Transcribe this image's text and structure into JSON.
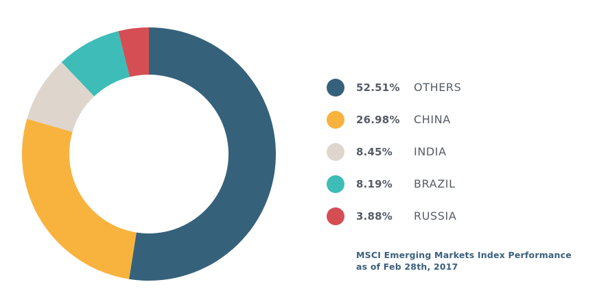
{
  "chart_data": {
    "type": "pie",
    "variant": "donut",
    "categories": [
      "OTHERS",
      "CHINA",
      "INDIA",
      "BRAZIL",
      "RUSSIA"
    ],
    "values": [
      52.51,
      26.98,
      8.45,
      8.19,
      3.88
    ],
    "value_labels": [
      "52.51%",
      "26.98%",
      "8.45%",
      "8.19%",
      "3.88%"
    ],
    "colors": [
      "#36617b",
      "#f8b33e",
      "#ded6cd",
      "#3dbcb8",
      "#d44e54"
    ],
    "start_angle": "12 o'clock",
    "direction": "clockwise",
    "legend_position": "right",
    "caption": [
      "MSCI Emerging Markets Index Performance",
      "as of Feb 28th, 2017"
    ]
  }
}
